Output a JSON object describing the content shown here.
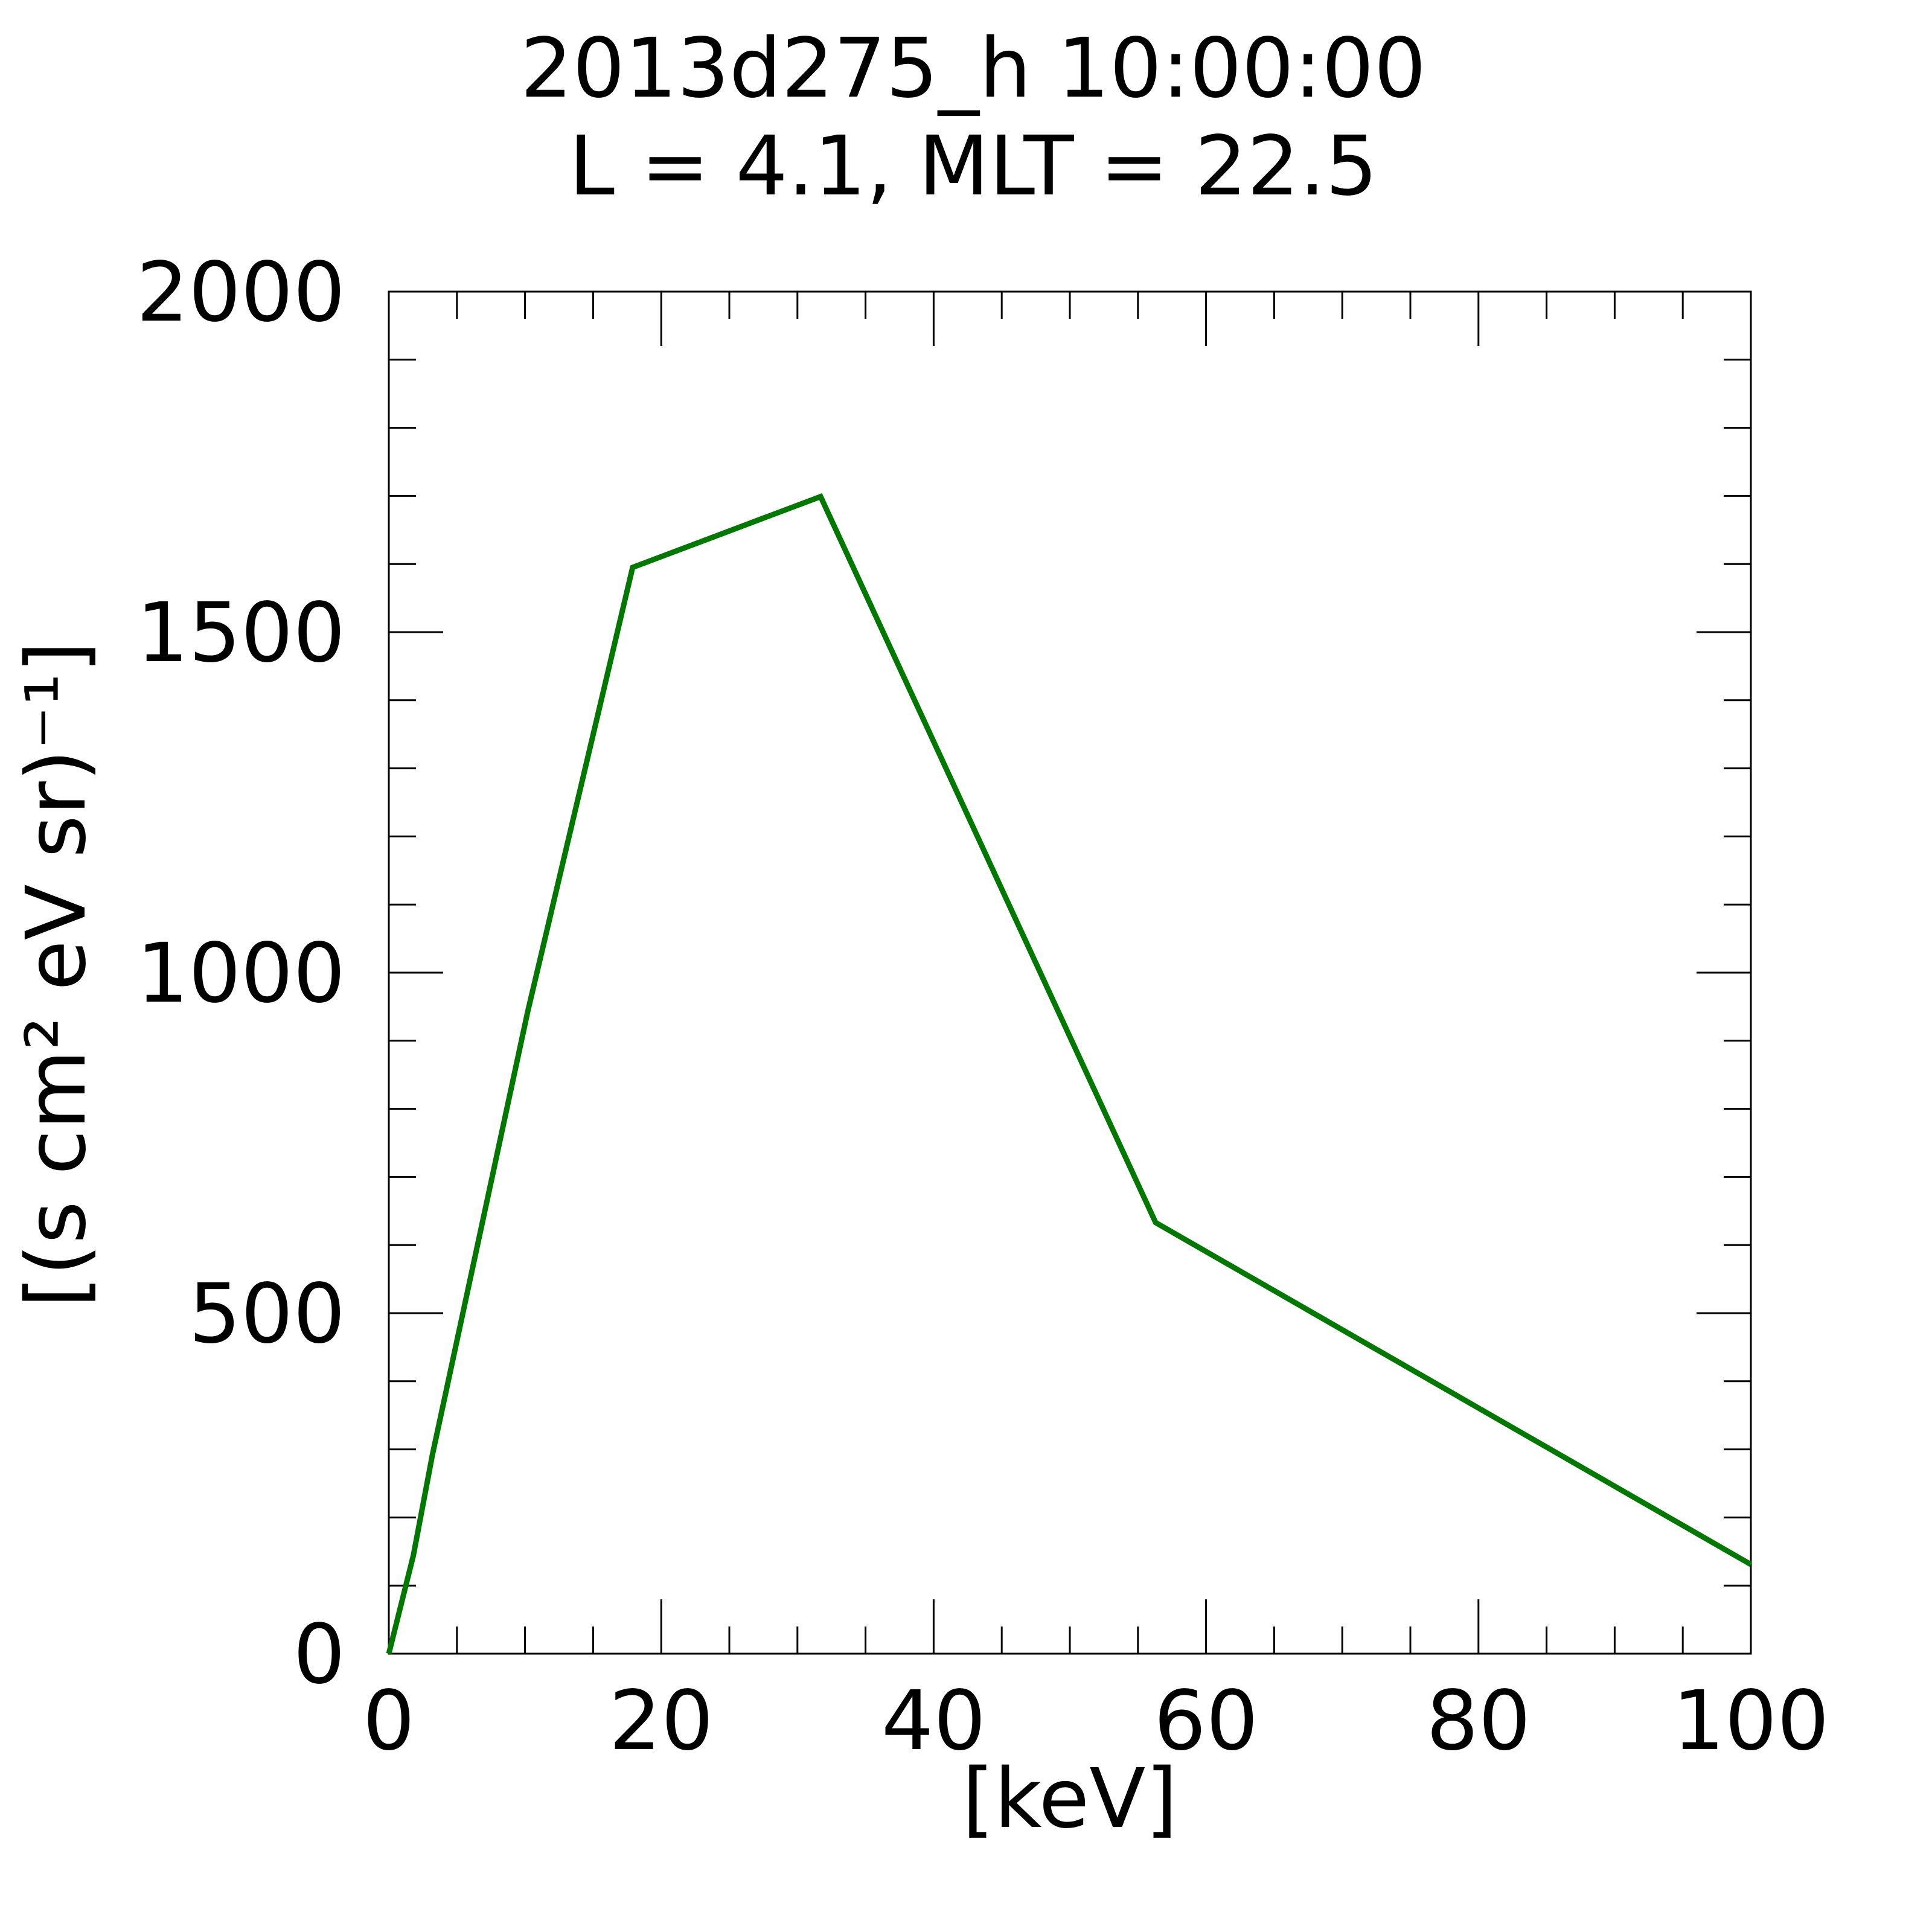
{
  "chart_data": {
    "type": "line",
    "title": "2013d275_h  10:00:00",
    "subtitle": "L = 4.1, MLT = 22.5",
    "x_label": "[keV]",
    "y_label": "[(s cm² eV sr)⁻¹]",
    "x": [
      0,
      1.8,
      3.2,
      10.2,
      17.9,
      31.7,
      56.3,
      100
    ],
    "series": [
      {
        "color": "#007800",
        "values": [
          0,
          144,
          292,
          943,
          1595,
          1699,
          633,
          131
        ]
      }
    ],
    "xlim": [
      0,
      100
    ],
    "xticks": [
      0,
      20,
      40,
      60,
      80,
      100
    ],
    "xminorticks": [
      5,
      10,
      15,
      25,
      30,
      35,
      45,
      50,
      55,
      65,
      70,
      75,
      85,
      90,
      95
    ],
    "ylim": [
      0,
      2000
    ],
    "yticks": [
      0,
      500,
      1000,
      1500,
      2000
    ],
    "yminorticks": [
      100,
      200,
      300,
      400,
      600,
      700,
      800,
      900,
      1100,
      1200,
      1300,
      1400,
      1600,
      1700,
      1800,
      1900
    ],
    "grid": false
  }
}
